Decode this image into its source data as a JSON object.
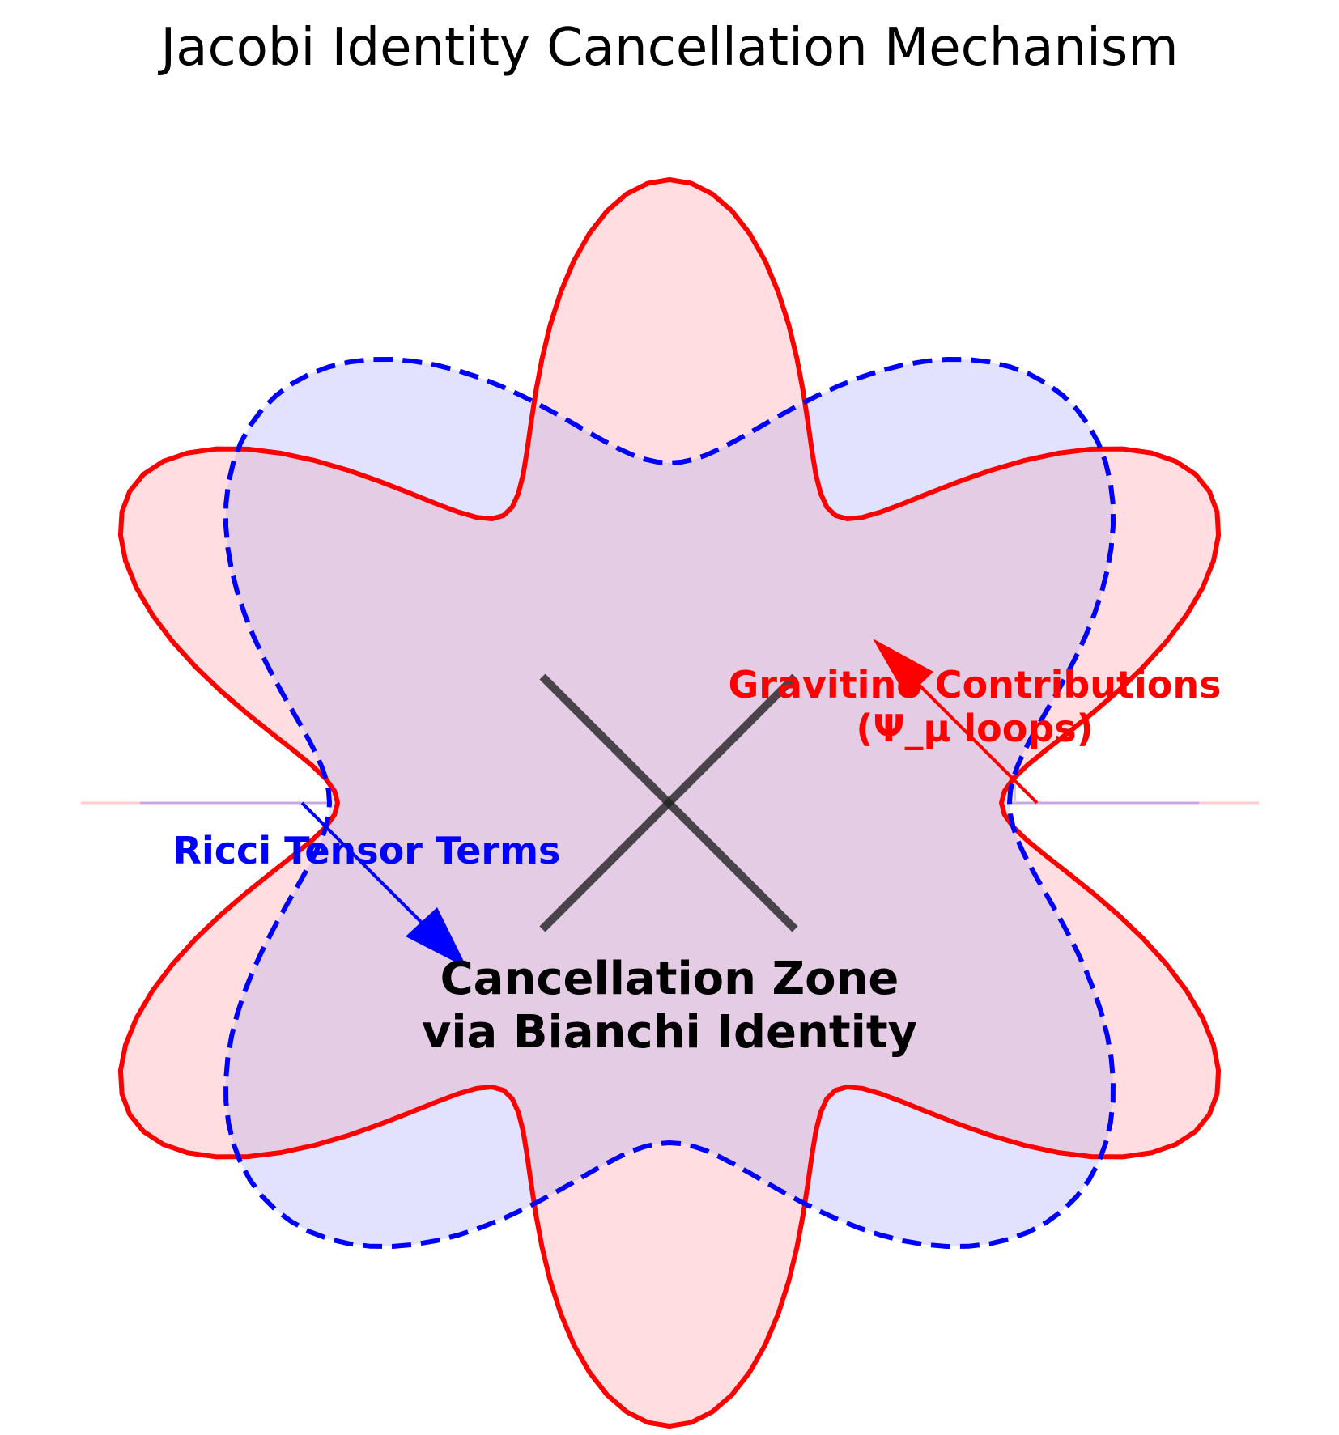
{
  "title": "Jacobi Identity Cancellation Mechanism",
  "colors": {
    "gravitino": "#ff0000",
    "gravitino_fill": "#ffdde0",
    "ricci": "#0000ff",
    "ricci_fill": "#e2e2ff",
    "cross": "#222222"
  },
  "labels": {
    "gravitino_line1": "Gravitino Contributions",
    "gravitino_line2": "(Ψ_μ loops)",
    "ricci": "Ricci Tensor Terms",
    "zone_line1": "Cancellation Zone",
    "zone_line2": "via Bianchi Identity"
  },
  "shapes": {
    "gravitino_petals": 6,
    "ricci_petals": 4,
    "gravitino_style": "solid",
    "ricci_style": "dashed"
  }
}
